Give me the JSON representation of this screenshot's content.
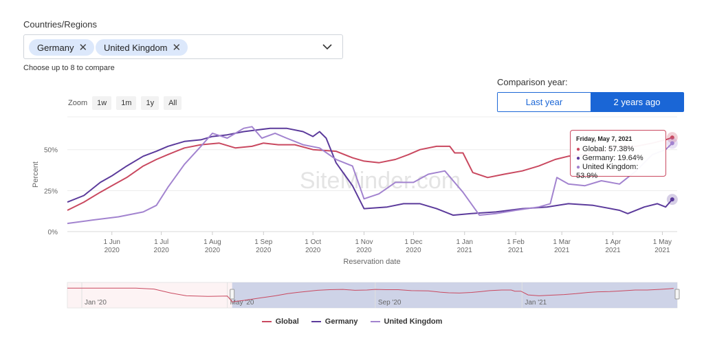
{
  "filter": {
    "label": "Countries/Regions",
    "chips": [
      {
        "label": "Germany"
      },
      {
        "label": "United Kingdom"
      }
    ],
    "hint": "Choose up to 8 to compare"
  },
  "comparison": {
    "label": "Comparison year:",
    "options": [
      {
        "label": "Last year",
        "selected": false
      },
      {
        "label": "2 years ago",
        "selected": true
      }
    ]
  },
  "zoom": {
    "label": "Zoom",
    "buttons": [
      "1w",
      "1m",
      "1y",
      "All"
    ]
  },
  "watermark": "SiteMinder.com",
  "colors": {
    "global": "#c9485f",
    "germany": "#5b3a9b",
    "uk": "#a283cf",
    "accent": "#1a66d6",
    "navigator_selection": "#c6cde4"
  },
  "tooltip": {
    "title": "Friday, May 7, 2021",
    "lines": [
      {
        "text": "Global: 57.38%",
        "color": "#c9485f"
      },
      {
        "text": "Germany: 19.64%",
        "color": "#5b3a9b"
      },
      {
        "text": "United Kingdom: 53.9%",
        "color": "#a283cf"
      }
    ]
  },
  "chart_data": {
    "type": "line",
    "title": "",
    "xlabel": "Reservation date",
    "ylabel": "Percent",
    "ylim": [
      0,
      70
    ],
    "yticks": [
      "0%",
      "25%",
      "50%"
    ],
    "ytick_values": [
      0,
      25,
      50
    ],
    "xlim": [
      "2020-05-05",
      "2021-05-10"
    ],
    "xticks": [
      {
        "date": "2020-06-01",
        "line1": "1 Jun",
        "line2": "2020"
      },
      {
        "date": "2020-07-01",
        "line1": "1 Jul",
        "line2": "2020"
      },
      {
        "date": "2020-08-01",
        "line1": "1 Aug",
        "line2": "2020"
      },
      {
        "date": "2020-09-01",
        "line1": "1 Sep",
        "line2": "2020"
      },
      {
        "date": "2020-10-01",
        "line1": "1 Oct",
        "line2": "2020"
      },
      {
        "date": "2020-11-01",
        "line1": "1 Nov",
        "line2": "2020"
      },
      {
        "date": "2020-12-01",
        "line1": "1 Dec",
        "line2": "2020"
      },
      {
        "date": "2021-01-01",
        "line1": "1 Jan",
        "line2": "2021"
      },
      {
        "date": "2021-02-01",
        "line1": "1 Feb",
        "line2": "2021"
      },
      {
        "date": "2021-03-01",
        "line1": "1 Mar",
        "line2": "2021"
      },
      {
        "date": "2021-04-01",
        "line1": "1 Apr",
        "line2": "2021"
      },
      {
        "date": "2021-05-01",
        "line1": "1 May",
        "line2": "2021"
      }
    ],
    "legend_position": "bottom",
    "grid": true,
    "series": [
      {
        "name": "Global",
        "color": "#c9485f",
        "points": [
          [
            "2020-05-05",
            13
          ],
          [
            "2020-05-15",
            18
          ],
          [
            "2020-05-25",
            24
          ],
          [
            "2020-06-01",
            28
          ],
          [
            "2020-06-10",
            33
          ],
          [
            "2020-06-20",
            40
          ],
          [
            "2020-06-28",
            44
          ],
          [
            "2020-07-05",
            47
          ],
          [
            "2020-07-15",
            51
          ],
          [
            "2020-07-25",
            53
          ],
          [
            "2020-08-05",
            54
          ],
          [
            "2020-08-15",
            51
          ],
          [
            "2020-08-25",
            52
          ],
          [
            "2020-09-01",
            54
          ],
          [
            "2020-09-10",
            53
          ],
          [
            "2020-09-20",
            53
          ],
          [
            "2020-10-01",
            50
          ],
          [
            "2020-10-15",
            49
          ],
          [
            "2020-10-25",
            45
          ],
          [
            "2020-11-01",
            43
          ],
          [
            "2020-11-10",
            42
          ],
          [
            "2020-11-20",
            44
          ],
          [
            "2020-11-28",
            47
          ],
          [
            "2020-12-05",
            50
          ],
          [
            "2020-12-15",
            52
          ],
          [
            "2020-12-23",
            52
          ],
          [
            "2020-12-26",
            48
          ],
          [
            "2020-12-31",
            48
          ],
          [
            "2021-01-06",
            36
          ],
          [
            "2021-01-15",
            33
          ],
          [
            "2021-01-25",
            35
          ],
          [
            "2021-02-05",
            37
          ],
          [
            "2021-02-15",
            40
          ],
          [
            "2021-02-25",
            44
          ],
          [
            "2021-03-05",
            46
          ],
          [
            "2021-03-15",
            47
          ],
          [
            "2021-03-25",
            49
          ],
          [
            "2021-04-05",
            52
          ],
          [
            "2021-04-15",
            52
          ],
          [
            "2021-04-25",
            54
          ],
          [
            "2021-05-03",
            56
          ],
          [
            "2021-05-07",
            57.38
          ]
        ]
      },
      {
        "name": "Germany",
        "color": "#5b3a9b",
        "points": [
          [
            "2020-05-05",
            18
          ],
          [
            "2020-05-15",
            22
          ],
          [
            "2020-05-25",
            30
          ],
          [
            "2020-06-01",
            34
          ],
          [
            "2020-06-10",
            40
          ],
          [
            "2020-06-20",
            46
          ],
          [
            "2020-06-28",
            49
          ],
          [
            "2020-07-05",
            52
          ],
          [
            "2020-07-15",
            55
          ],
          [
            "2020-07-25",
            56
          ],
          [
            "2020-08-01",
            58
          ],
          [
            "2020-08-10",
            59
          ],
          [
            "2020-08-20",
            61
          ],
          [
            "2020-08-28",
            62
          ],
          [
            "2020-09-05",
            63
          ],
          [
            "2020-09-15",
            63
          ],
          [
            "2020-09-25",
            61
          ],
          [
            "2020-10-01",
            58
          ],
          [
            "2020-10-05",
            61
          ],
          [
            "2020-10-09",
            57
          ],
          [
            "2020-10-15",
            42
          ],
          [
            "2020-10-25",
            28
          ],
          [
            "2020-11-01",
            14
          ],
          [
            "2020-11-15",
            15
          ],
          [
            "2020-11-25",
            17
          ],
          [
            "2020-12-05",
            17
          ],
          [
            "2020-12-15",
            14
          ],
          [
            "2020-12-25",
            10
          ],
          [
            "2021-01-05",
            11
          ],
          [
            "2021-01-20",
            12
          ],
          [
            "2021-02-05",
            14
          ],
          [
            "2021-02-20",
            15
          ],
          [
            "2021-03-05",
            17
          ],
          [
            "2021-03-20",
            16
          ],
          [
            "2021-04-05",
            13
          ],
          [
            "2021-04-10",
            11
          ],
          [
            "2021-04-20",
            15
          ],
          [
            "2021-04-28",
            17
          ],
          [
            "2021-05-03",
            15
          ],
          [
            "2021-05-07",
            19.64
          ]
        ]
      },
      {
        "name": "United Kingdom",
        "color": "#a283cf",
        "points": [
          [
            "2020-05-05",
            5
          ],
          [
            "2020-05-20",
            7
          ],
          [
            "2020-06-05",
            9
          ],
          [
            "2020-06-20",
            12
          ],
          [
            "2020-06-28",
            16
          ],
          [
            "2020-07-05",
            27
          ],
          [
            "2020-07-15",
            41
          ],
          [
            "2020-07-25",
            52
          ],
          [
            "2020-08-01",
            60
          ],
          [
            "2020-08-10",
            57
          ],
          [
            "2020-08-15",
            60
          ],
          [
            "2020-08-20",
            63
          ],
          [
            "2020-08-25",
            64
          ],
          [
            "2020-08-31",
            57
          ],
          [
            "2020-09-08",
            60
          ],
          [
            "2020-09-15",
            57
          ],
          [
            "2020-09-25",
            53
          ],
          [
            "2020-10-05",
            51
          ],
          [
            "2020-10-15",
            44
          ],
          [
            "2020-10-25",
            40
          ],
          [
            "2020-11-01",
            20
          ],
          [
            "2020-11-10",
            23
          ],
          [
            "2020-11-20",
            30
          ],
          [
            "2020-12-01",
            30
          ],
          [
            "2020-12-10",
            35
          ],
          [
            "2020-12-20",
            37
          ],
          [
            "2020-12-31",
            24
          ],
          [
            "2021-01-10",
            10
          ],
          [
            "2021-01-20",
            11
          ],
          [
            "2021-02-01",
            13
          ],
          [
            "2021-02-15",
            15
          ],
          [
            "2021-02-22",
            17
          ],
          [
            "2021-02-26",
            33
          ],
          [
            "2021-03-05",
            29
          ],
          [
            "2021-03-15",
            28
          ],
          [
            "2021-03-25",
            31
          ],
          [
            "2021-04-05",
            29
          ],
          [
            "2021-04-15",
            37
          ],
          [
            "2021-04-25",
            47
          ],
          [
            "2021-05-03",
            50
          ],
          [
            "2021-05-07",
            53.9
          ]
        ]
      }
    ]
  },
  "navigator": {
    "labels": [
      {
        "date": "2020-01-01",
        "text": "Jan '20"
      },
      {
        "date": "2020-05-01",
        "text": "May '20"
      },
      {
        "date": "2020-09-01",
        "text": "Sep '20"
      },
      {
        "date": "2021-01-01",
        "text": "Jan '21"
      }
    ],
    "range": [
      "2019-12-20",
      "2021-05-10"
    ],
    "selection": [
      "2020-05-05",
      "2021-05-10"
    ]
  }
}
